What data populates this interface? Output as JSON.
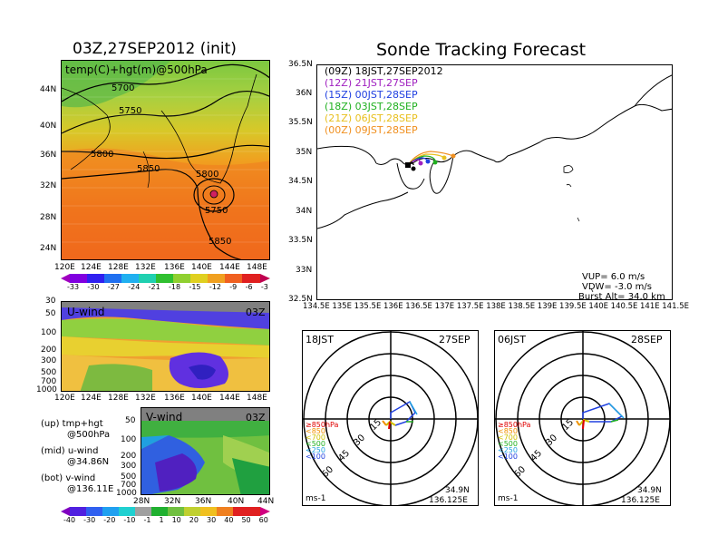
{
  "map500": {
    "title": "03Z,27SEP2012 (init)",
    "label": "temp(C)+hgt(m)@500hPa",
    "lat_ticks": [
      "44N",
      "40N",
      "36N",
      "32N",
      "28N",
      "24N"
    ],
    "lon_ticks": [
      "120E",
      "124E",
      "128E",
      "132E",
      "136E",
      "140E",
      "144E",
      "148E"
    ],
    "contours": [
      "5700",
      "5750",
      "5800",
      "5850",
      "5800",
      "5750",
      "5850"
    ],
    "colorbar": [
      "-33",
      "-30",
      "-27",
      "-24",
      "-21",
      "-18",
      "-15",
      "-12",
      "-9",
      "-6",
      "-3"
    ]
  },
  "uwind": {
    "title": "U-wind",
    "time": "03Z",
    "p_ticks": [
      "30",
      "50",
      "100",
      "200",
      "300",
      "500",
      "700",
      "1000"
    ],
    "lon_ticks": [
      "120E",
      "124E",
      "128E",
      "132E",
      "136E",
      "140E",
      "144E",
      "148E"
    ]
  },
  "vwind": {
    "title": "V-wind",
    "time": "03Z",
    "p_ticks": [
      "50",
      "100",
      "200",
      "300",
      "500",
      "700",
      "1000"
    ],
    "lat_ticks": [
      "28N",
      "32N",
      "36N",
      "40N",
      "44N"
    ],
    "colorbar": [
      "-40",
      "-30",
      "-20",
      "-10",
      "-1",
      "1",
      "10",
      "20",
      "30",
      "40",
      "50",
      "60"
    ]
  },
  "notes": {
    "up": "(up) tmp+hgt",
    "up2": "@500hPa",
    "mid": "(mid) u-wind",
    "mid2": "@34.86N",
    "bot": "(bot) v-wind",
    "bot2": "@136.11E"
  },
  "tracking": {
    "title": "Sonde Tracking Forecast",
    "lat_ticks": [
      "36.5N",
      "36N",
      "35.5N",
      "35N",
      "34.5N",
      "34N",
      "33.5N",
      "33N",
      "32.5N"
    ],
    "lon_ticks": [
      "134.5E",
      "135E",
      "135.5E",
      "136E",
      "136.5E",
      "137E",
      "137.5E",
      "138E",
      "138.5E",
      "139E",
      "139.5E",
      "140E",
      "140.5E",
      "141E",
      "141.5E"
    ],
    "legend": [
      {
        "text": "(09Z)  18JST,27SEP2012",
        "color": "#000000"
      },
      {
        "text": "(12Z)  21JST,27SEP",
        "color": "#a020c0"
      },
      {
        "text": "(15Z)  00JST,28SEP",
        "color": "#2040e0"
      },
      {
        "text": "(18Z)  03JST,28SEP",
        "color": "#20b020"
      },
      {
        "text": "(21Z)  06JST,28SEP",
        "color": "#e8c020"
      },
      {
        "text": "(00Z)  09JST,28SEP",
        "color": "#f09020"
      }
    ],
    "vup": "VUP=  6.0  m/s",
    "vdw": "VDW=  -3.0  m/s",
    "burst": "Burst Alt=  34.0  km"
  },
  "polar1": {
    "time": "18JST",
    "date": "27SEP",
    "rings": [
      "15",
      "30",
      "45",
      "60"
    ],
    "legend": [
      "≥850hPa",
      "<850",
      "<700",
      "<500",
      "<250",
      "<100"
    ],
    "unit": "ms-1",
    "lat": "34.9N",
    "lon": "136.125E"
  },
  "polar2": {
    "time": "06JST",
    "date": "28SEP",
    "rings": [
      "15",
      "30",
      "45",
      "60"
    ],
    "legend": [
      "≥850hPa",
      "<850",
      "<700",
      "<500",
      "<250",
      "<100"
    ],
    "unit": "ms-1",
    "lat": "34.9N",
    "lon": "136.125E"
  },
  "colors": {
    "legend_levels": [
      "#e00000",
      "#f09000",
      "#d0c000",
      "#20b020",
      "#20a0e0",
      "#2040e0"
    ]
  }
}
